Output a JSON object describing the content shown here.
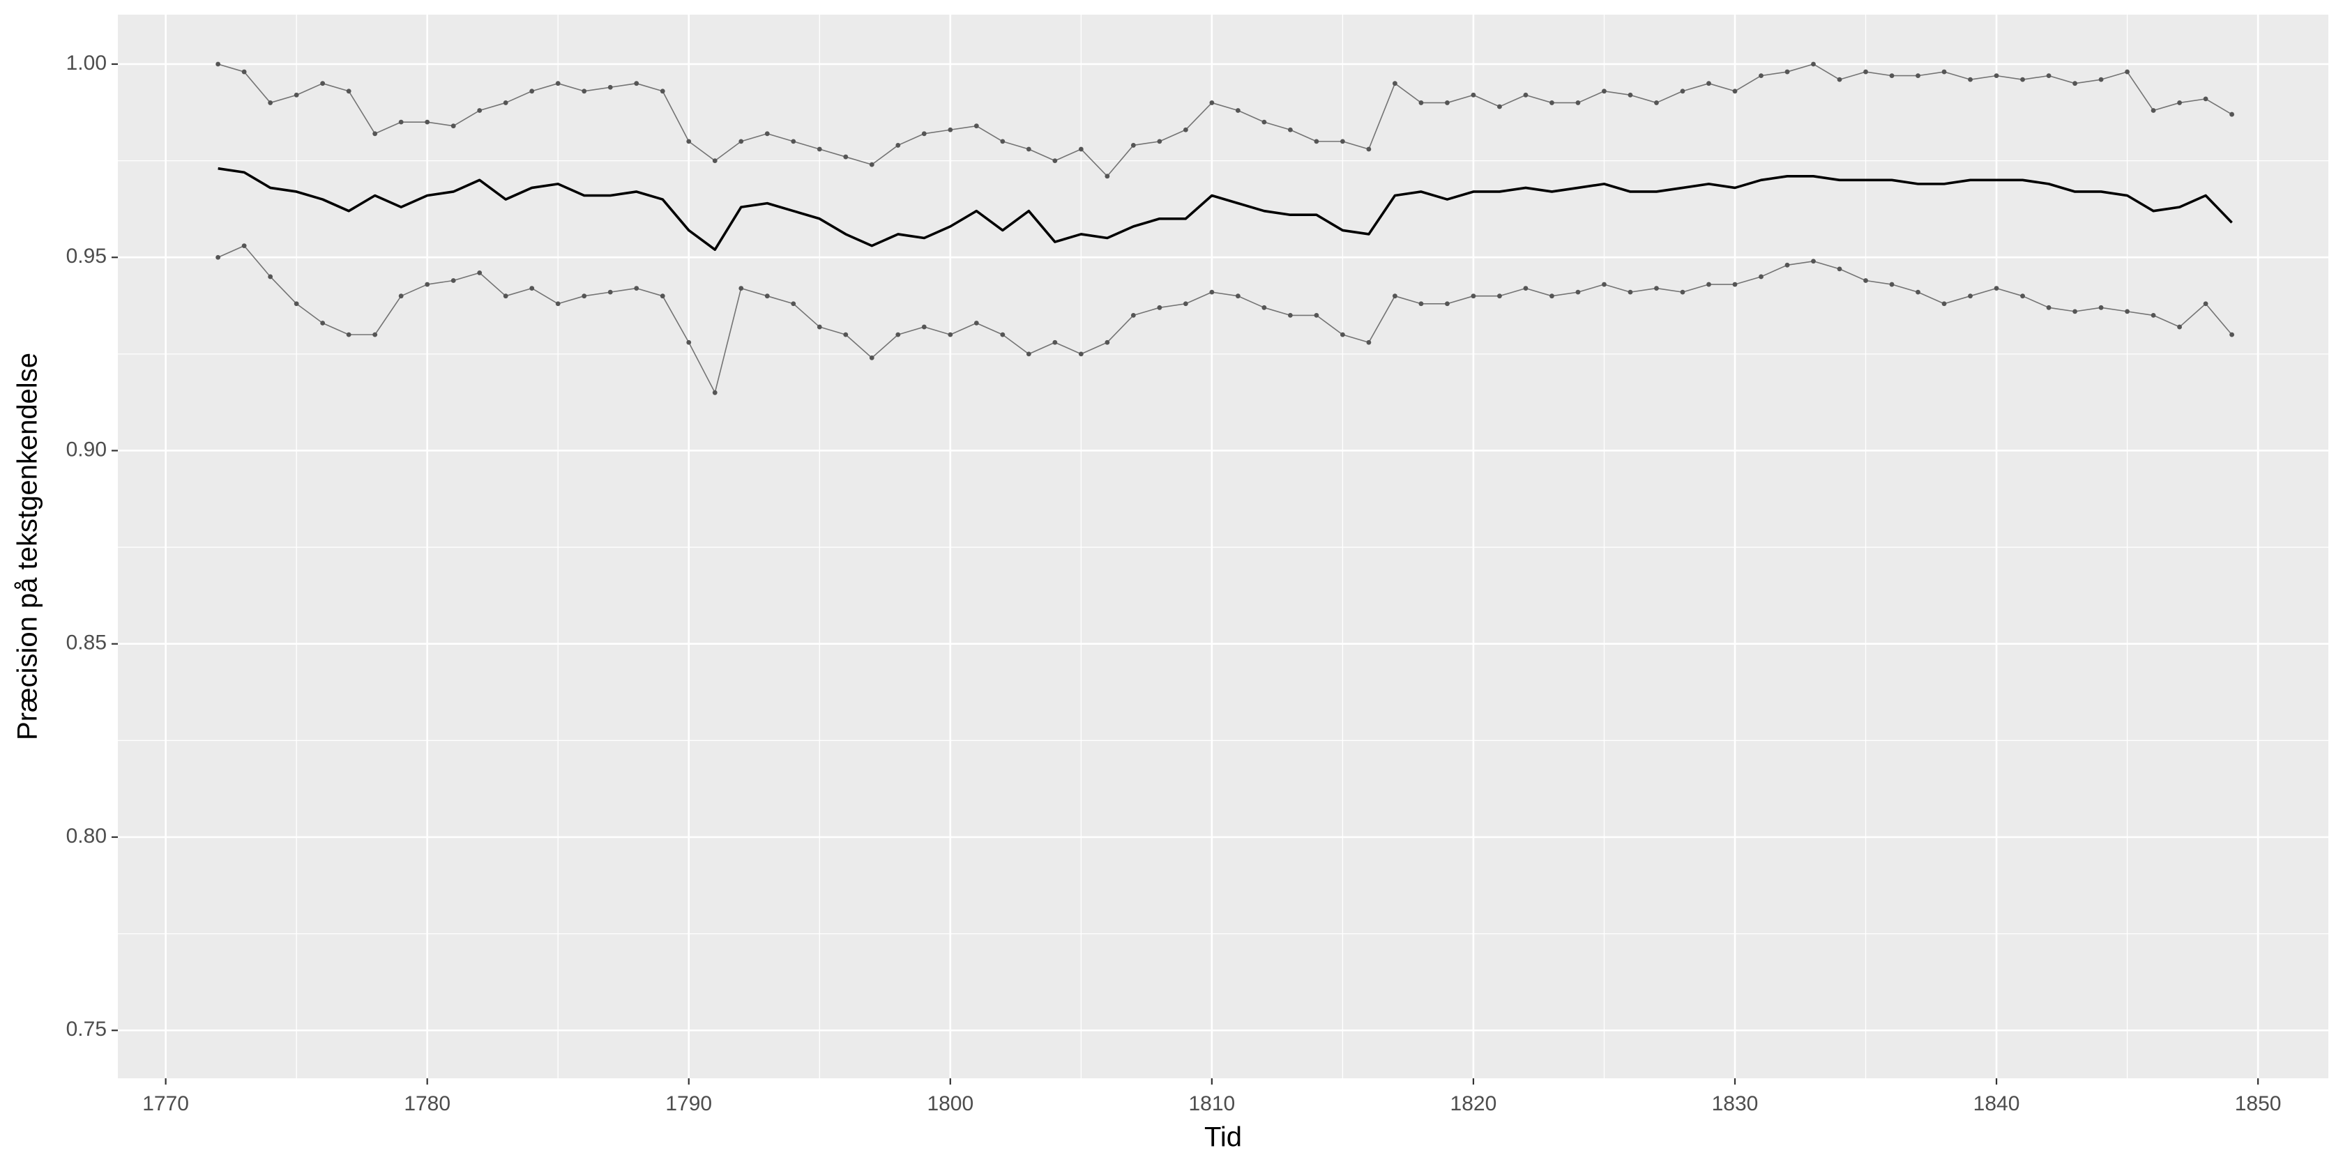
{
  "chart_data": {
    "type": "line",
    "xlabel": "Tid",
    "ylabel": "Præcision på tekstgenkendelse",
    "x": [
      1772,
      1773,
      1774,
      1775,
      1776,
      1777,
      1778,
      1779,
      1780,
      1781,
      1782,
      1783,
      1784,
      1785,
      1786,
      1787,
      1788,
      1789,
      1790,
      1791,
      1792,
      1793,
      1794,
      1795,
      1796,
      1797,
      1798,
      1799,
      1800,
      1801,
      1802,
      1803,
      1804,
      1805,
      1806,
      1807,
      1808,
      1809,
      1810,
      1811,
      1812,
      1813,
      1814,
      1815,
      1816,
      1817,
      1818,
      1819,
      1820,
      1821,
      1822,
      1823,
      1824,
      1825,
      1826,
      1827,
      1828,
      1829,
      1830,
      1831,
      1832,
      1833,
      1834,
      1835,
      1836,
      1837,
      1838,
      1839,
      1840,
      1841,
      1842,
      1843,
      1844,
      1845,
      1846,
      1847,
      1848,
      1849
    ],
    "series": [
      {
        "color": "#555555",
        "points": true,
        "values": [
          1.0,
          0.998,
          0.99,
          0.992,
          0.995,
          0.993,
          0.982,
          0.985,
          0.985,
          0.984,
          0.988,
          0.99,
          0.993,
          0.995,
          0.993,
          0.994,
          0.995,
          0.993,
          0.98,
          0.975,
          0.98,
          0.982,
          0.98,
          0.978,
          0.976,
          0.974,
          0.979,
          0.982,
          0.983,
          0.984,
          0.98,
          0.978,
          0.975,
          0.978,
          0.971,
          0.979,
          0.98,
          0.983,
          0.99,
          0.988,
          0.985,
          0.983,
          0.98,
          0.98,
          0.978,
          0.995,
          0.99,
          0.99,
          0.992,
          0.989,
          0.992,
          0.99,
          0.99,
          0.993,
          0.992,
          0.99,
          0.993,
          0.995,
          0.993,
          0.997,
          0.998,
          1.0,
          0.996,
          0.998,
          0.997,
          0.997,
          0.998,
          0.996,
          0.997,
          0.996,
          0.997,
          0.995,
          0.996,
          0.998,
          0.988,
          0.99,
          0.991,
          0.987
        ]
      },
      {
        "color": "#000000",
        "points": false,
        "values": [
          0.973,
          0.972,
          0.968,
          0.967,
          0.965,
          0.962,
          0.966,
          0.963,
          0.966,
          0.967,
          0.97,
          0.965,
          0.968,
          0.969,
          0.966,
          0.966,
          0.967,
          0.965,
          0.957,
          0.952,
          0.963,
          0.964,
          0.962,
          0.96,
          0.956,
          0.953,
          0.956,
          0.955,
          0.958,
          0.962,
          0.957,
          0.962,
          0.954,
          0.956,
          0.955,
          0.958,
          0.96,
          0.96,
          0.966,
          0.964,
          0.962,
          0.961,
          0.961,
          0.957,
          0.956,
          0.966,
          0.967,
          0.965,
          0.967,
          0.967,
          0.968,
          0.967,
          0.968,
          0.969,
          0.967,
          0.967,
          0.968,
          0.969,
          0.968,
          0.97,
          0.971,
          0.971,
          0.97,
          0.97,
          0.97,
          0.969,
          0.969,
          0.97,
          0.97,
          0.97,
          0.969,
          0.967,
          0.967,
          0.966,
          0.962,
          0.963,
          0.966,
          0.959
        ]
      },
      {
        "color": "#555555",
        "points": true,
        "values": [
          0.95,
          0.953,
          0.945,
          0.938,
          0.933,
          0.93,
          0.93,
          0.94,
          0.943,
          0.944,
          0.946,
          0.94,
          0.942,
          0.938,
          0.94,
          0.941,
          0.942,
          0.94,
          0.928,
          0.915,
          0.942,
          0.94,
          0.938,
          0.932,
          0.93,
          0.924,
          0.93,
          0.932,
          0.93,
          0.933,
          0.93,
          0.925,
          0.928,
          0.925,
          0.928,
          0.935,
          0.937,
          0.938,
          0.941,
          0.94,
          0.937,
          0.935,
          0.935,
          0.93,
          0.928,
          0.94,
          0.938,
          0.938,
          0.94,
          0.94,
          0.942,
          0.94,
          0.941,
          0.943,
          0.941,
          0.942,
          0.941,
          0.943,
          0.943,
          0.945,
          0.948,
          0.949,
          0.947,
          0.944,
          0.943,
          0.941,
          0.938,
          0.94,
          0.942,
          0.94,
          0.937,
          0.936,
          0.937,
          0.936,
          0.935,
          0.932,
          0.938,
          0.93
        ]
      }
    ],
    "xlim": [
      1768.17,
      1852.69
    ],
    "ylim": [
      0.7376,
      1.0128
    ],
    "xticks": [
      1770,
      1780,
      1790,
      1800,
      1810,
      1820,
      1830,
      1840,
      1850
    ],
    "yticks": [
      0.75,
      {
        "value": 0.8,
        "label": "0.80"
      },
      0.85,
      {
        "value": 0.9,
        "label": "0.90"
      },
      0.95,
      {
        "value": 1.0,
        "label": "1.00"
      }
    ],
    "grid": true,
    "background": "#ebebeb"
  }
}
